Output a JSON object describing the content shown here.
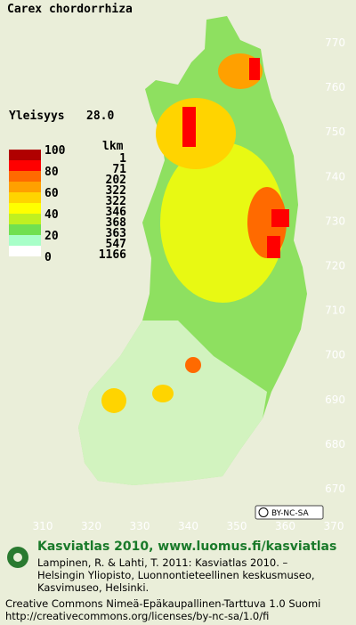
{
  "header": {
    "species": "Carex chordorrhiza",
    "frequency_label": "Yleisyys",
    "frequency_value": "28.0"
  },
  "legend": {
    "scale_labels": [
      100,
      80,
      60,
      40,
      20,
      0
    ],
    "count_header": "lkm",
    "counts": [
      1,
      71,
      202,
      322,
      322,
      346,
      368,
      363,
      547,
      1166
    ],
    "colors": [
      "#b00000",
      "#ff0000",
      "#ff6a00",
      "#ffa000",
      "#ffd400",
      "#ffff00",
      "#c0f020",
      "#70e050",
      "#a8ffc8",
      "#ffffff"
    ]
  },
  "grid_labels": {
    "north": [
      770,
      760,
      750,
      740,
      730,
      720,
      710,
      700,
      690,
      680,
      670
    ],
    "east": [
      310,
      320,
      330,
      340,
      350,
      360,
      370
    ]
  },
  "license_badge": "BY-NC-SA",
  "footer": {
    "atlas": "Kasviatlas 2010, www.luomus.fi/kasviatlas",
    "citation": [
      "Lampinen, R. & Lahti, T. 2011: Kasviatlas 2010. –",
      "Helsingin Yliopisto, Luonnontieteellinen keskusmuseo,",
      "Kasvimuseo, Helsinki."
    ],
    "license": [
      "Creative Commons Nimeä-Epäkaupallinen-Tarttuva 1.0 Suomi",
      "http://creativecommons.org/licenses/by-nc-sa/1.0/fi"
    ]
  }
}
